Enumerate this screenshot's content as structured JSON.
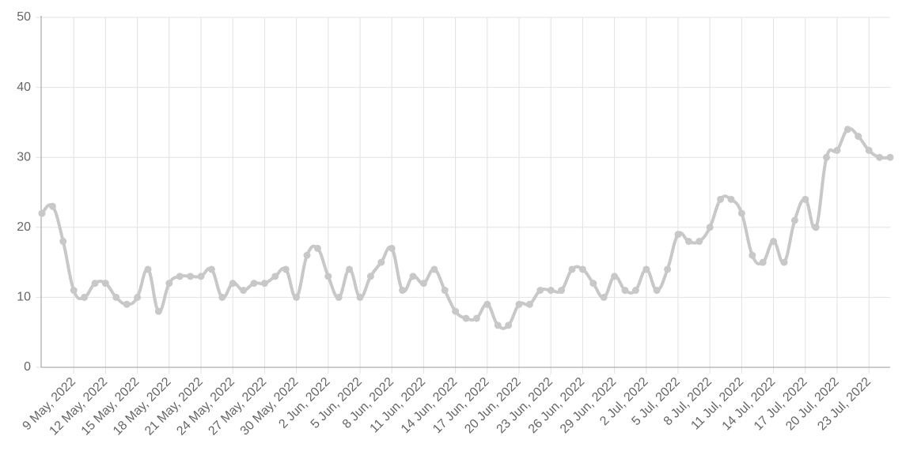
{
  "chart_data": {
    "type": "line",
    "categories": [
      null,
      null,
      null,
      "9 May, 2022",
      null,
      null,
      "12 May, 2022",
      null,
      null,
      "15 May, 2022",
      null,
      null,
      "18 May, 2022",
      null,
      null,
      "21 May, 2022",
      null,
      null,
      "24 May, 2022",
      null,
      null,
      "27 May, 2022",
      null,
      null,
      "30 May, 2022",
      null,
      null,
      "2 Jun, 2022",
      null,
      null,
      "5 Jun, 2022",
      null,
      null,
      "8 Jun, 2022",
      null,
      null,
      "11 Jun, 2022",
      null,
      null,
      "14 Jun, 2022",
      null,
      null,
      "17 Jun, 2022",
      null,
      null,
      "20 Jun, 2022",
      null,
      null,
      "23 Jun, 2022",
      null,
      null,
      "26 Jun, 2022",
      null,
      null,
      "29 Jun, 2022",
      null,
      null,
      "2 Jul, 2022",
      null,
      null,
      "5 Jul, 2022",
      null,
      null,
      "8 Jul, 2022",
      null,
      null,
      "11 Jul, 2022",
      null,
      null,
      "14 Jul, 2022",
      null,
      null,
      "17 Jul, 2022",
      null,
      null,
      "20 Jul, 2022",
      null,
      null,
      "23 Jul, 2022",
      null,
      null
    ],
    "series": [
      {
        "color": "#c8c8c8",
        "values": [
          22,
          23,
          18,
          11,
          10,
          12,
          12,
          10,
          9,
          10,
          14,
          8,
          12,
          13,
          13,
          13,
          14,
          10,
          12,
          11,
          12,
          12,
          13,
          14,
          10,
          16,
          17,
          13,
          10,
          14,
          10,
          13,
          15,
          17,
          11,
          13,
          12,
          14,
          11,
          8,
          7,
          7,
          9,
          6,
          6,
          9,
          9,
          11,
          11,
          11,
          14,
          14,
          12,
          10,
          13,
          11,
          11,
          14,
          11,
          14,
          19,
          18,
          18,
          20,
          24,
          24,
          22,
          16,
          15,
          18,
          15,
          21,
          24,
          20,
          30,
          31,
          34,
          33,
          31,
          30,
          30
        ]
      }
    ],
    "ylim": [
      0,
      50
    ],
    "yticks": [
      0,
      10,
      20,
      30,
      40,
      50
    ],
    "grid": true
  }
}
